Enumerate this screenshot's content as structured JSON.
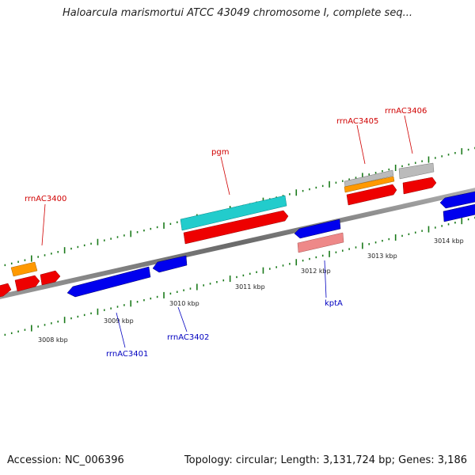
{
  "title": "Haloarcula marismortui ATCC 43049 chromosome I, complete seq...",
  "footer": {
    "accession": "Accession: NC_006396",
    "summary": "Topology: circular; Length: 3,131,724 bp; Genes: 3,186"
  },
  "ticks": [
    "3008 kbp",
    "3009 kbp",
    "3010 kbp",
    "3011 kbp",
    "3012 kbp",
    "3013 kbp",
    "3014 kbp"
  ],
  "gene_labels": {
    "rrnAC3400": "rrnAC3400",
    "pgm": "pgm",
    "rrnAC3405": "rrnAC3405",
    "rrnAC3406": "rrnAC3406",
    "rrnAC3401": "rrnAC3401",
    "rrnAC3402": "rrnAC3402",
    "kptA": "kptA"
  },
  "colors": {
    "forward_cds": "#ee0000",
    "reverse_cds": "#0000ee",
    "rna": "#ff9900",
    "other": "#22cccc",
    "pseudo": "#ee8888",
    "misc": "#bbbbbb",
    "backbone": "#888888",
    "tick": "#1a7a1a"
  }
}
